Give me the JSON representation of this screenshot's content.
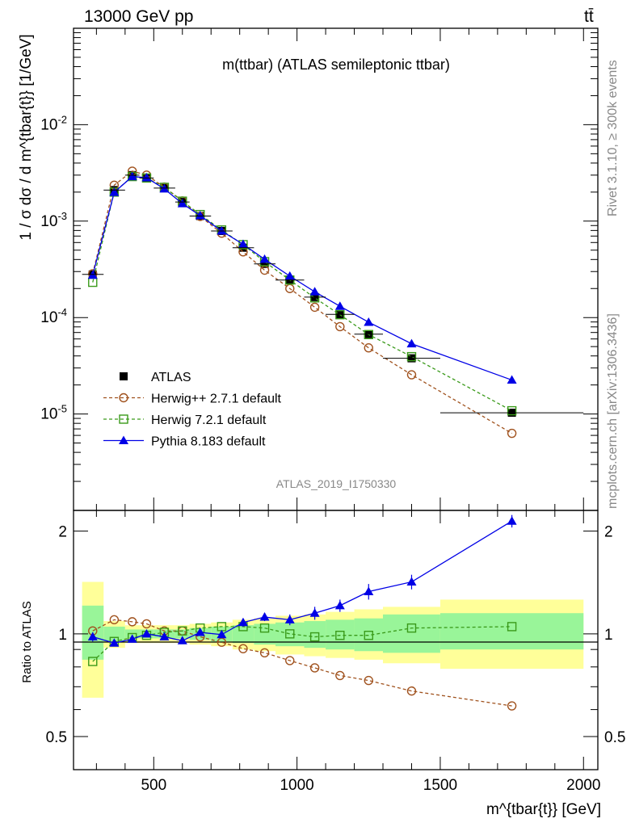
{
  "header": {
    "energy_label": "13000 GeV pp",
    "process_label": "tt̄"
  },
  "side_labels": {
    "rivet": "Rivet 3.1.10, ≥ 300k events",
    "mcplots": "mcplots.cern.ch [arXiv:1306.3436]"
  },
  "chart_data": [
    {
      "type": "line",
      "panel": "main",
      "title": "m(ttbar) (ATLAS semileptonic ttbar)",
      "ylabel": "1 / σ dσ / d m^{tbar{t}} [1/GeV]",
      "yscale": "log",
      "ylim": [
        1e-06,
        0.1
      ],
      "xlim": [
        220,
        2050
      ],
      "y_tick_labels": [
        "10^-5",
        "10^-4",
        "10^-3",
        "10^-2"
      ],
      "analysis_label": "ATLAS_2019_I1750330",
      "bins": [
        [
          250,
          325
        ],
        [
          325,
          400
        ],
        [
          400,
          450
        ],
        [
          450,
          500
        ],
        [
          500,
          575
        ],
        [
          575,
          625
        ],
        [
          625,
          700
        ],
        [
          700,
          775
        ],
        [
          775,
          850
        ],
        [
          850,
          925
        ],
        [
          925,
          1025
        ],
        [
          1025,
          1100
        ],
        [
          1100,
          1200
        ],
        [
          1200,
          1300
        ],
        [
          1300,
          1500
        ],
        [
          1500,
          2000
        ]
      ],
      "x": [
        287,
        362,
        425,
        475,
        537,
        600,
        662,
        737,
        812,
        887,
        975,
        1062,
        1150,
        1250,
        1400,
        1750
      ],
      "series": [
        {
          "name": "ATLAS",
          "style": "data",
          "color": "#000000",
          "values": [
            0.00028,
            0.0021,
            0.003,
            0.0028,
            0.0022,
            0.00158,
            0.00113,
            0.00079,
            0.00053,
            0.00036,
            0.000245,
            0.000163,
            0.000108,
            6.72e-05,
            3.78e-05,
            1.03e-05
          ]
        },
        {
          "name": "Herwig++ 2.7.1 default",
          "style": "circle-dashed",
          "color": "#a0521e",
          "values": [
            0.000285,
            0.00236,
            0.0033,
            0.003,
            0.00225,
            0.00162,
            0.00112,
            0.00075,
            0.00048,
            0.00031,
            0.0002,
            0.000128,
            8.05e-05,
            4.85e-05,
            2.55e-05,
            6.3e-06
          ]
        },
        {
          "name": "Herwig 7.2.1 default",
          "style": "square-dashed",
          "color": "#3a9a1a",
          "values": [
            0.000232,
            0.002,
            0.0029,
            0.0028,
            0.00224,
            0.00161,
            0.00117,
            0.00081,
            0.00057,
            0.00038,
            0.000245,
            0.00016,
            0.000107,
            6.66e-05,
            3.93e-05,
            1.08e-05
          ]
        },
        {
          "name": "Pythia 8.183 default",
          "style": "triangle-solid",
          "color": "#0000e6",
          "values": [
            0.000275,
            0.00199,
            0.0029,
            0.00282,
            0.00216,
            0.00152,
            0.00114,
            0.00079,
            0.000575,
            0.000402,
            0.000269,
            0.000185,
            0.000131,
            8.95e-05,
            5.35e-05,
            2.25e-05
          ]
        }
      ]
    },
    {
      "type": "line",
      "panel": "ratio",
      "ylabel": "Ratio to ATLAS",
      "xlabel": "m^{tbar{t}} [GeV]",
      "xlim": [
        220,
        2050
      ],
      "ylim": [
        0.4,
        2.3
      ],
      "x_ticks": [
        500,
        1000,
        1500,
        2000
      ],
      "y_ticks": [
        0.5,
        1,
        2
      ],
      "bins": [
        [
          250,
          325
        ],
        [
          325,
          400
        ],
        [
          400,
          450
        ],
        [
          450,
          500
        ],
        [
          500,
          575
        ],
        [
          575,
          625
        ],
        [
          625,
          700
        ],
        [
          700,
          775
        ],
        [
          775,
          850
        ],
        [
          850,
          925
        ],
        [
          925,
          1025
        ],
        [
          1025,
          1100
        ],
        [
          1100,
          1200
        ],
        [
          1200,
          1300
        ],
        [
          1300,
          1500
        ],
        [
          1500,
          2000
        ]
      ],
      "band_inner": [
        [
          0.84,
          1.21
        ],
        [
          0.95,
          1.05
        ],
        [
          0.97,
          1.03
        ],
        [
          0.97,
          1.03
        ],
        [
          0.97,
          1.03
        ],
        [
          0.97,
          1.03
        ],
        [
          0.96,
          1.04
        ],
        [
          0.95,
          1.05
        ],
        [
          0.94,
          1.06
        ],
        [
          0.93,
          1.07
        ],
        [
          0.92,
          1.08
        ],
        [
          0.91,
          1.09
        ],
        [
          0.9,
          1.1
        ],
        [
          0.89,
          1.11
        ],
        [
          0.88,
          1.14
        ],
        [
          0.9,
          1.15
        ]
      ],
      "band_outer": [
        [
          0.65,
          1.42
        ],
        [
          0.91,
          1.09
        ],
        [
          0.94,
          1.06
        ],
        [
          0.94,
          1.06
        ],
        [
          0.94,
          1.06
        ],
        [
          0.94,
          1.06
        ],
        [
          0.93,
          1.07
        ],
        [
          0.92,
          1.08
        ],
        [
          0.9,
          1.1
        ],
        [
          0.89,
          1.11
        ],
        [
          0.87,
          1.13
        ],
        [
          0.86,
          1.14
        ],
        [
          0.85,
          1.16
        ],
        [
          0.84,
          1.18
        ],
        [
          0.82,
          1.2
        ],
        [
          0.79,
          1.26
        ]
      ],
      "x": [
        287,
        362,
        425,
        475,
        537,
        600,
        662,
        737,
        812,
        887,
        975,
        1062,
        1150,
        1250,
        1400,
        1750
      ],
      "series": [
        {
          "name": "Herwig++ 2.7.1 default",
          "style": "circle-dashed",
          "color": "#a0521e",
          "values": [
            1.02,
            1.1,
            1.085,
            1.07,
            1.02,
            1.02,
            0.98,
            0.945,
            0.905,
            0.88,
            0.835,
            0.795,
            0.755,
            0.73,
            0.68,
            0.615
          ]
        },
        {
          "name": "Herwig 7.2.1 default",
          "style": "square-dashed",
          "color": "#3a9a1a",
          "values": [
            0.83,
            0.95,
            0.975,
            0.99,
            1.01,
            1.02,
            1.04,
            1.05,
            1.05,
            1.04,
            1.0,
            0.98,
            0.99,
            0.99,
            1.04,
            1.05
          ]
        },
        {
          "name": "Pythia 8.183 default",
          "style": "triangle-solid",
          "color": "#0000e6",
          "values": [
            0.98,
            0.94,
            0.965,
            1.0,
            0.98,
            0.955,
            1.01,
            0.995,
            1.08,
            1.12,
            1.1,
            1.15,
            1.21,
            1.33,
            1.42,
            2.14
          ],
          "errors": [
            0.03,
            0.02,
            0.015,
            0.015,
            0.015,
            0.015,
            0.02,
            0.02,
            0.03,
            0.03,
            0.04,
            0.05,
            0.05,
            0.07,
            0.07,
            0.09
          ]
        }
      ]
    }
  ]
}
